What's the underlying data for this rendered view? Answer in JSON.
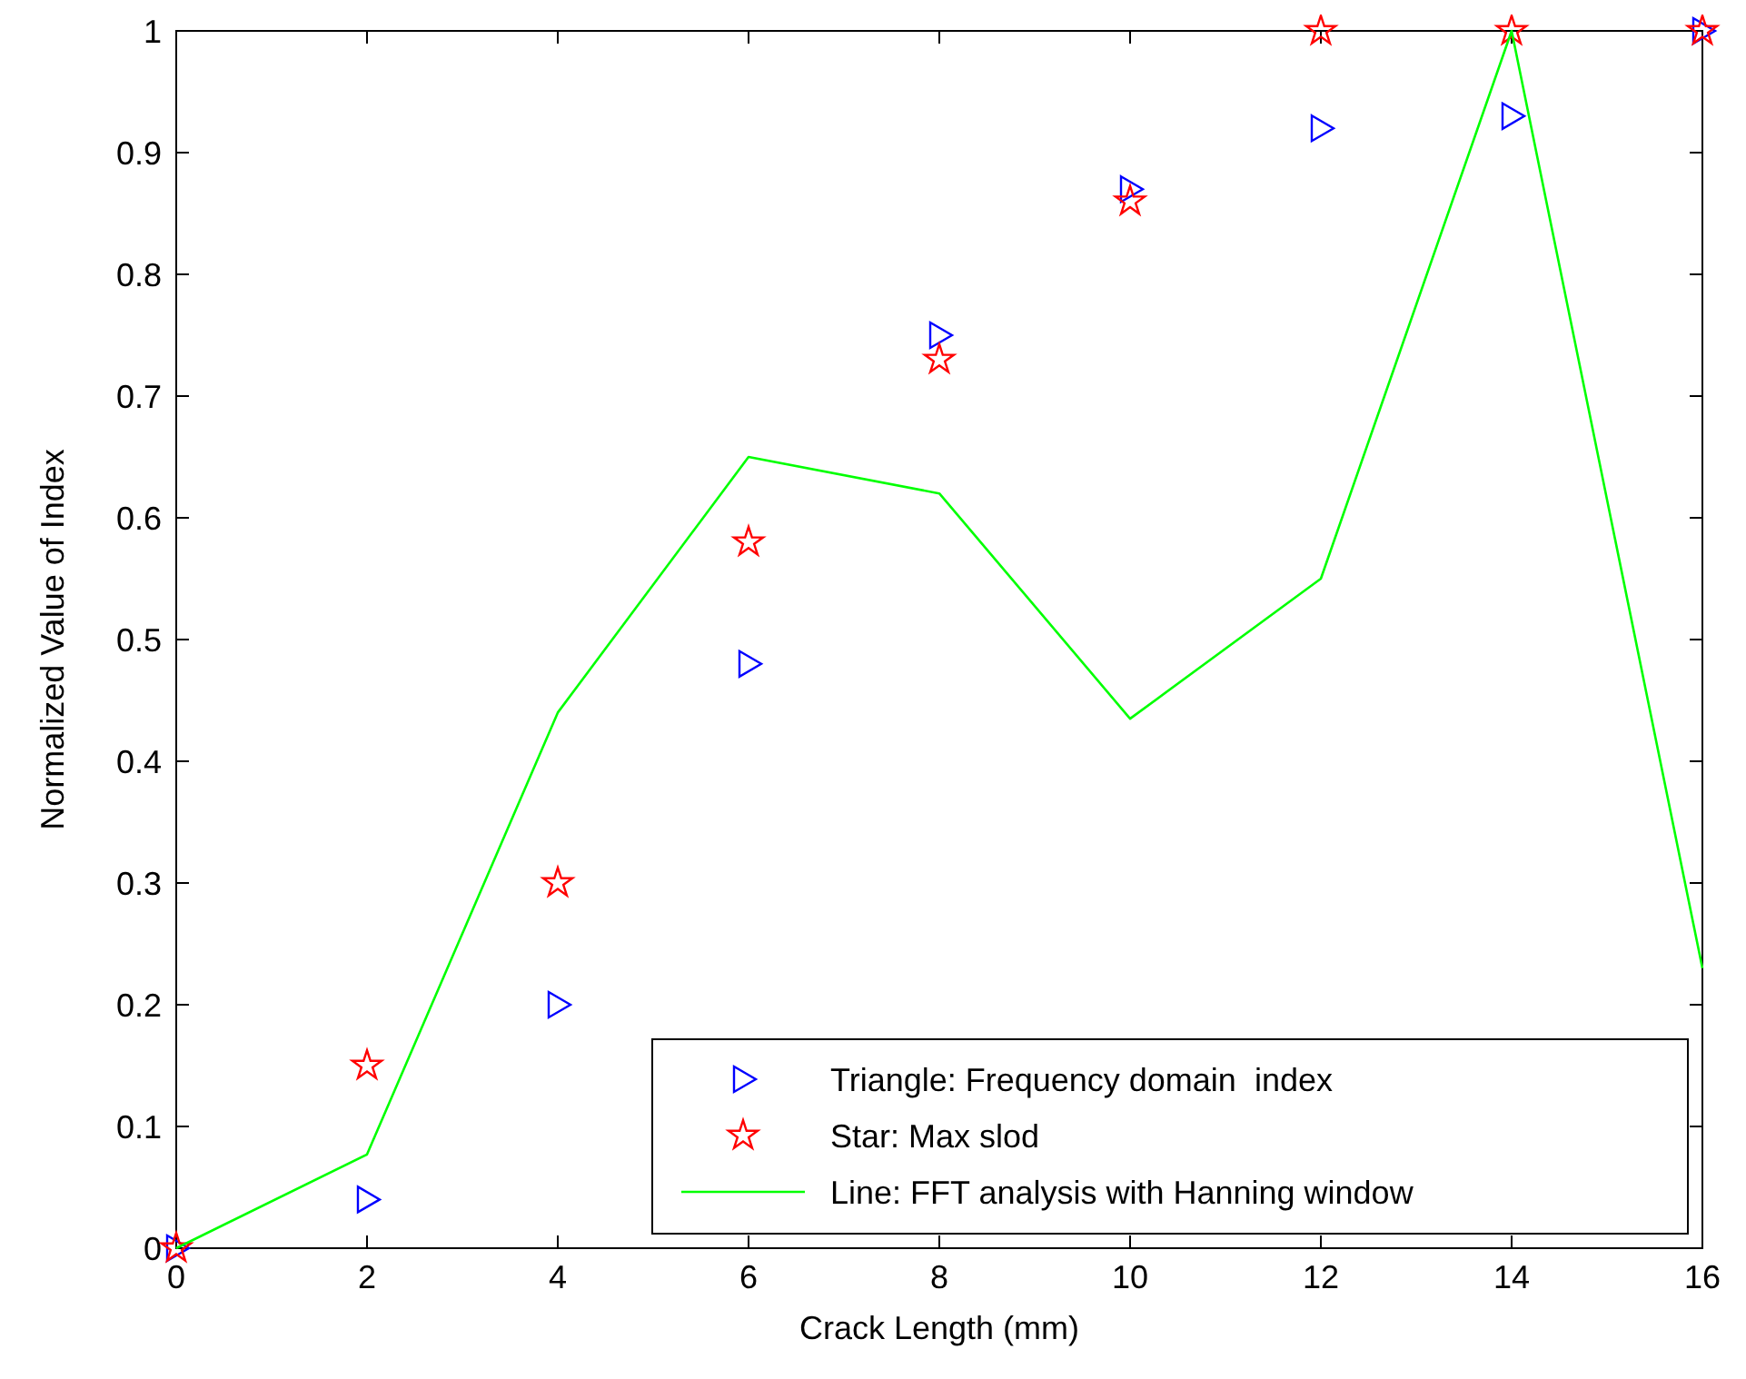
{
  "chart_data": {
    "type": "scatter",
    "xlabel": "Crack Length (mm)",
    "ylabel": "Normalized Value of Index",
    "x": [
      0,
      2,
      4,
      6,
      8,
      10,
      12,
      14,
      16
    ],
    "xlim": [
      0,
      16
    ],
    "xticks": [
      0,
      2,
      4,
      6,
      8,
      10,
      12,
      14,
      16
    ],
    "ylim": [
      0,
      1
    ],
    "yticks": [
      0,
      0.1,
      0.2,
      0.3,
      0.4,
      0.5,
      0.6,
      0.7,
      0.8,
      0.9,
      1
    ],
    "grid": false,
    "legend": "bottom right",
    "series": [
      {
        "name": "Triangle: Frequency domain  index",
        "color": "#0000ff",
        "marker": "triangle",
        "values": [
          0,
          0.04,
          0.2,
          0.48,
          0.75,
          0.87,
          0.92,
          0.93,
          1.0
        ]
      },
      {
        "name": "Star: Max slod",
        "color": "#ff0000",
        "marker": "star",
        "values": [
          0,
          0.15,
          0.3,
          0.58,
          0.73,
          0.86,
          1.0,
          1.0,
          1.0
        ]
      },
      {
        "name": "Line: FFT analysis with Hanning window",
        "type": "line",
        "color": "#00ff00",
        "marker": "none",
        "line_style": "solid",
        "values": [
          0,
          0.077,
          0.44,
          0.65,
          0.62,
          0.435,
          0.55,
          1.0,
          0.23
        ]
      }
    ]
  }
}
